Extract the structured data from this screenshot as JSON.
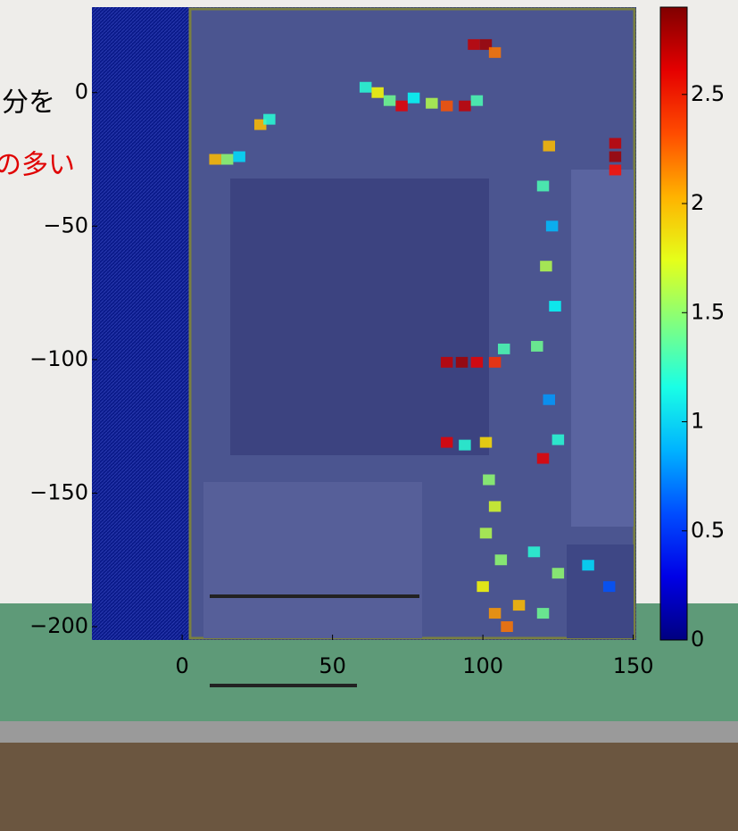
{
  "slide_text": {
    "line1": "分を",
    "line2": "の多い"
  },
  "chart_data": {
    "type": "heatmap",
    "colormap": "jet",
    "x": [
      97,
      101,
      104,
      61,
      65,
      69,
      73,
      77,
      83,
      88,
      94,
      98,
      26,
      29,
      11,
      15,
      19,
      144,
      144,
      144,
      122,
      120,
      123,
      121,
      124,
      118,
      122,
      125,
      88,
      93,
      98,
      104,
      107,
      88,
      94,
      101,
      120,
      102,
      104,
      101,
      106,
      100,
      104,
      108,
      112,
      117,
      125,
      135,
      142,
      120
    ],
    "y": [
      18,
      18,
      15,
      2,
      0,
      -3,
      -5,
      -2,
      -4,
      -5,
      -5,
      -3,
      -12,
      -10,
      -25,
      -25,
      -24,
      -19,
      -24,
      -29,
      -20,
      -35,
      -50,
      -65,
      -80,
      -95,
      -115,
      -130,
      -101,
      -101,
      -101,
      -101,
      -96,
      -131,
      -132,
      -131,
      -137,
      -145,
      -155,
      -165,
      -175,
      -185,
      -195,
      -200,
      -192,
      -172,
      -180,
      -177,
      -185,
      -195
    ],
    "values": [
      2.7,
      2.8,
      2.2,
      1.2,
      1.8,
      1.4,
      2.6,
      1.1,
      1.6,
      2.3,
      2.7,
      1.3,
      2.0,
      1.2,
      2.0,
      1.5,
      1.0,
      2.7,
      2.8,
      2.5,
      2.0,
      1.3,
      0.9,
      1.6,
      1.1,
      1.4,
      0.8,
      1.2,
      2.7,
      2.8,
      2.6,
      2.4,
      1.3,
      2.6,
      1.2,
      1.9,
      2.6,
      1.5,
      1.7,
      1.6,
      1.5,
      1.8,
      2.1,
      2.2,
      2.0,
      1.2,
      1.5,
      1.0,
      0.6,
      1.4
    ],
    "xlim": [
      -30,
      151
    ],
    "ylim": [
      32,
      -205
    ],
    "xticks": [
      0,
      50,
      100,
      150
    ],
    "yticks": [
      0,
      {
        "value": -50,
        "label": "−50"
      },
      {
        "value": -100,
        "label": "−100"
      },
      {
        "value": -150,
        "label": "−150"
      },
      {
        "value": -200,
        "label": "−200"
      }
    ],
    "clim": [
      0,
      2.9
    ],
    "cticks": [
      0,
      0.5,
      1,
      1.5,
      2,
      2.5
    ]
  }
}
